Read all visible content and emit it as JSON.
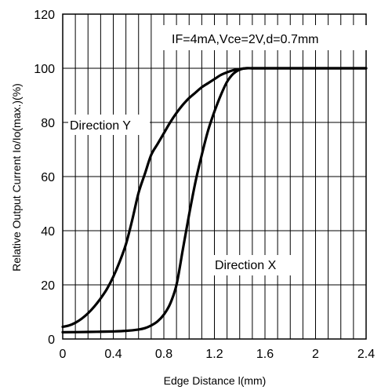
{
  "chart_data": {
    "type": "line",
    "title": "",
    "annotation": "IF=4mA,Vce=2V,d=0.7mm",
    "xlabel": "Edge Distance l(mm)",
    "ylabel": "Relative Output Current Io/Io(max.)(%)",
    "xlim": [
      0,
      2.4
    ],
    "ylim": [
      0,
      120
    ],
    "xticks": [
      0,
      0.4,
      0.8,
      1.2,
      1.6,
      2,
      2.4
    ],
    "xtick_labels": [
      "0",
      "0.4",
      "0.8",
      "1.2",
      "1.6",
      "2",
      "2.4"
    ],
    "yticks": [
      0,
      20,
      40,
      60,
      80,
      100,
      120
    ],
    "ytick_labels": [
      "0",
      "20",
      "40",
      "60",
      "80",
      "100",
      "120"
    ],
    "x_minor_step": 0.1,
    "grid": true,
    "series": [
      {
        "name": "Direction Y",
        "x": [
          0,
          0.05,
          0.1,
          0.15,
          0.2,
          0.25,
          0.3,
          0.35,
          0.4,
          0.45,
          0.5,
          0.55,
          0.6,
          0.65,
          0.7,
          0.75,
          0.8,
          0.85,
          0.9,
          0.95,
          1.0,
          1.05,
          1.1,
          1.15,
          1.2,
          1.25,
          1.3,
          1.35,
          1.4,
          1.45,
          1.5,
          1.6,
          2.0,
          2.4
        ],
        "y": [
          4.5,
          5,
          6,
          7.5,
          9.5,
          12,
          15,
          18.5,
          23,
          28.5,
          35,
          44,
          54,
          61,
          68,
          72,
          76,
          80,
          83.5,
          86.5,
          89,
          91,
          93,
          94.5,
          96,
          97.5,
          98.5,
          99.3,
          99.7,
          100,
          100,
          100,
          100,
          100
        ]
      },
      {
        "name": "Direction X",
        "x": [
          0,
          0.2,
          0.4,
          0.5,
          0.6,
          0.65,
          0.7,
          0.75,
          0.8,
          0.85,
          0.9,
          0.95,
          1.0,
          1.05,
          1.1,
          1.15,
          1.2,
          1.25,
          1.3,
          1.35,
          1.4,
          1.45,
          1.5,
          1.6,
          2.0,
          2.4
        ],
        "y": [
          2.5,
          2.6,
          2.8,
          3,
          3.5,
          4,
          5,
          6.5,
          9,
          13,
          20,
          33,
          46,
          58,
          68,
          77,
          84,
          90,
          95,
          98,
          99.5,
          100,
          100,
          100,
          100,
          100
        ]
      }
    ],
    "series_labels": [
      "Direction Y",
      "Direction X"
    ]
  }
}
